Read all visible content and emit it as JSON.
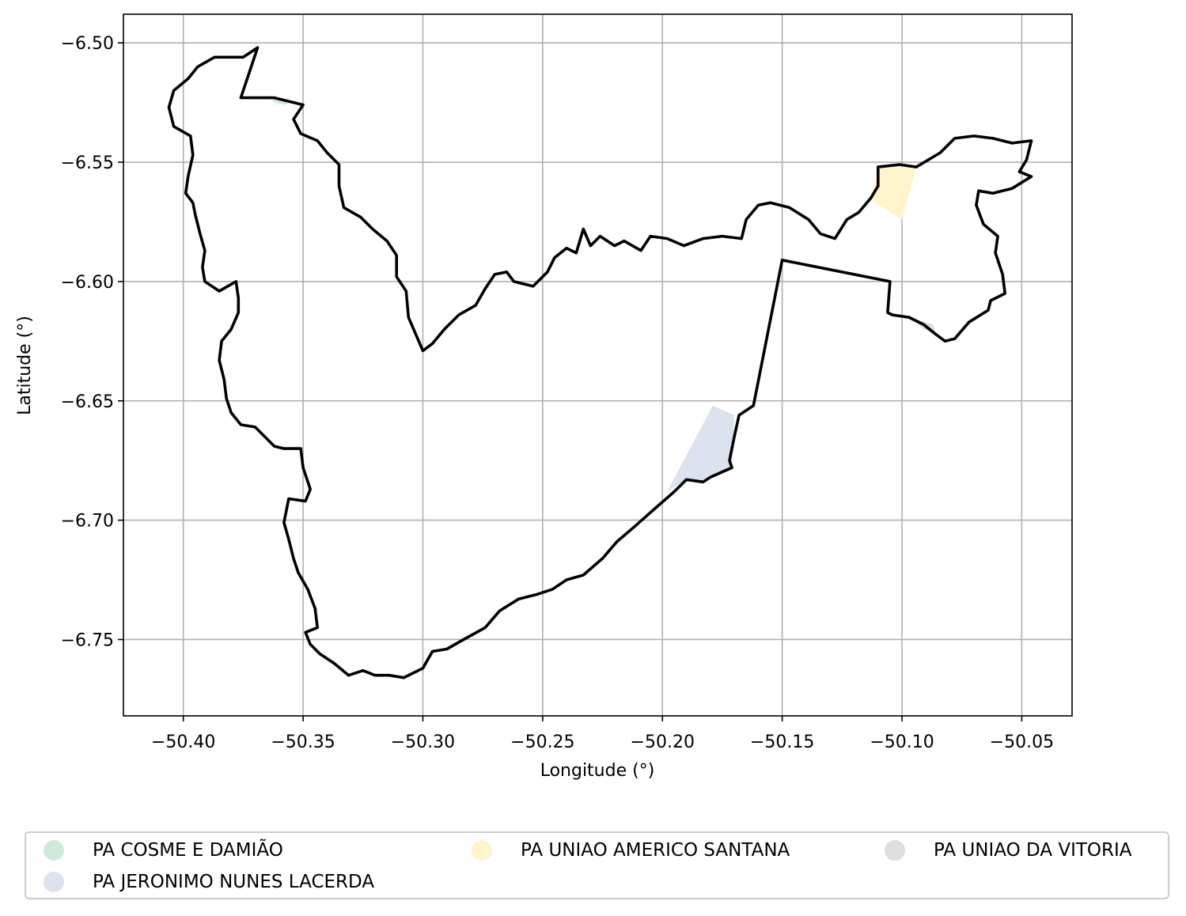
{
  "chart_data": {
    "type": "map",
    "title": "",
    "xlabel": "Longitude (°)",
    "ylabel": "Latitude (°)",
    "xlim": [
      -50.425,
      -50.029
    ],
    "ylim": [
      -6.782,
      -6.488
    ],
    "xticks": [
      -50.4,
      -50.35,
      -50.3,
      -50.25,
      -50.2,
      -50.15,
      -50.1,
      -50.05
    ],
    "xtick_labels": [
      "−50.40",
      "−50.35",
      "−50.30",
      "−50.25",
      "−50.20",
      "−50.15",
      "−50.10",
      "−50.05"
    ],
    "yticks": [
      -6.5,
      -6.55,
      -6.6,
      -6.65,
      -6.7,
      -6.75
    ],
    "ytick_labels": [
      "−6.50",
      "−6.55",
      "−6.60",
      "−6.65",
      "−6.70",
      "−6.75"
    ],
    "grid": true,
    "legend_position": "bottom",
    "boundary": {
      "color": "#000000",
      "coords": [
        [
          -50.369,
          -6.502
        ],
        [
          -50.376,
          -6.523
        ],
        [
          -50.362,
          -6.523
        ],
        [
          -50.35,
          -6.526
        ],
        [
          -50.354,
          -6.532
        ],
        [
          -50.351,
          -6.538
        ],
        [
          -50.344,
          -6.541
        ],
        [
          -50.34,
          -6.546
        ],
        [
          -50.335,
          -6.551
        ],
        [
          -50.335,
          -6.56
        ],
        [
          -50.333,
          -6.569
        ],
        [
          -50.326,
          -6.573
        ],
        [
          -50.321,
          -6.578
        ],
        [
          -50.315,
          -6.583
        ],
        [
          -50.311,
          -6.589
        ],
        [
          -50.311,
          -6.598
        ],
        [
          -50.307,
          -6.604
        ],
        [
          -50.306,
          -6.615
        ],
        [
          -50.303,
          -6.622
        ],
        [
          -50.3,
          -6.629
        ],
        [
          -50.296,
          -6.626
        ],
        [
          -50.291,
          -6.62
        ],
        [
          -50.285,
          -6.614
        ],
        [
          -50.278,
          -6.61
        ],
        [
          -50.274,
          -6.603
        ],
        [
          -50.27,
          -6.597
        ],
        [
          -50.265,
          -6.596
        ],
        [
          -50.262,
          -6.6
        ],
        [
          -50.254,
          -6.602
        ],
        [
          -50.248,
          -6.596
        ],
        [
          -50.245,
          -6.59
        ],
        [
          -50.24,
          -6.586
        ],
        [
          -50.236,
          -6.588
        ],
        [
          -50.233,
          -6.578
        ],
        [
          -50.23,
          -6.585
        ],
        [
          -50.226,
          -6.581
        ],
        [
          -50.22,
          -6.585
        ],
        [
          -50.216,
          -6.583
        ],
        [
          -50.209,
          -6.587
        ],
        [
          -50.205,
          -6.581
        ],
        [
          -50.198,
          -6.582
        ],
        [
          -50.191,
          -6.585
        ],
        [
          -50.183,
          -6.582
        ],
        [
          -50.175,
          -6.581
        ],
        [
          -50.167,
          -6.582
        ],
        [
          -50.165,
          -6.574
        ],
        [
          -50.16,
          -6.568
        ],
        [
          -50.155,
          -6.567
        ],
        [
          -50.147,
          -6.569
        ],
        [
          -50.139,
          -6.574
        ],
        [
          -50.134,
          -6.58
        ],
        [
          -50.128,
          -6.582
        ],
        [
          -50.123,
          -6.574
        ],
        [
          -50.118,
          -6.571
        ],
        [
          -50.113,
          -6.565
        ],
        [
          -50.11,
          -6.56
        ],
        [
          -50.11,
          -6.552
        ],
        [
          -50.101,
          -6.551
        ],
        [
          -50.094,
          -6.552
        ],
        [
          -50.084,
          -6.546
        ],
        [
          -50.078,
          -6.54
        ],
        [
          -50.07,
          -6.539
        ],
        [
          -50.062,
          -6.54
        ],
        [
          -50.054,
          -6.542
        ],
        [
          -50.046,
          -6.541
        ],
        [
          -50.048,
          -6.549
        ],
        [
          -50.051,
          -6.554
        ],
        [
          -50.046,
          -6.556
        ],
        [
          -50.054,
          -6.561
        ],
        [
          -50.062,
          -6.563
        ],
        [
          -50.068,
          -6.562
        ],
        [
          -50.069,
          -6.568
        ],
        [
          -50.066,
          -6.576
        ],
        [
          -50.06,
          -6.581
        ],
        [
          -50.061,
          -6.588
        ],
        [
          -50.058,
          -6.597
        ],
        [
          -50.057,
          -6.605
        ],
        [
          -50.063,
          -6.608
        ],
        [
          -50.064,
          -6.612
        ],
        [
          -50.072,
          -6.617
        ],
        [
          -50.078,
          -6.624
        ],
        [
          -50.082,
          -6.625
        ],
        [
          -50.086,
          -6.622
        ],
        [
          -50.091,
          -6.618
        ],
        [
          -50.097,
          -6.615
        ],
        [
          -50.104,
          -6.614
        ],
        [
          -50.106,
          -6.613
        ],
        [
          -50.105,
          -6.6
        ],
        [
          -50.15,
          -6.591
        ],
        [
          -50.162,
          -6.652
        ],
        [
          -50.168,
          -6.656
        ],
        [
          -50.17,
          -6.665
        ],
        [
          -50.172,
          -6.675
        ],
        [
          -50.171,
          -6.678
        ],
        [
          -50.18,
          -6.682
        ],
        [
          -50.183,
          -6.684
        ],
        [
          -50.19,
          -6.683
        ],
        [
          -50.195,
          -6.688
        ],
        [
          -50.203,
          -6.695
        ],
        [
          -50.212,
          -6.703
        ],
        [
          -50.219,
          -6.709
        ],
        [
          -50.225,
          -6.716
        ],
        [
          -50.233,
          -6.723
        ],
        [
          -50.24,
          -6.725
        ],
        [
          -50.246,
          -6.729
        ],
        [
          -50.252,
          -6.731
        ],
        [
          -50.26,
          -6.733
        ],
        [
          -50.268,
          -6.738
        ],
        [
          -50.274,
          -6.745
        ],
        [
          -50.283,
          -6.75
        ],
        [
          -50.29,
          -6.754
        ],
        [
          -50.296,
          -6.755
        ],
        [
          -50.3,
          -6.762
        ],
        [
          -50.308,
          -6.766
        ],
        [
          -50.314,
          -6.765
        ],
        [
          -50.32,
          -6.765
        ],
        [
          -50.325,
          -6.763
        ],
        [
          -50.331,
          -6.765
        ],
        [
          -50.337,
          -6.76
        ],
        [
          -50.343,
          -6.756
        ],
        [
          -50.347,
          -6.752
        ],
        [
          -50.349,
          -6.747
        ],
        [
          -50.344,
          -6.745
        ],
        [
          -50.345,
          -6.737
        ],
        [
          -50.348,
          -6.729
        ],
        [
          -50.352,
          -6.722
        ],
        [
          -50.354,
          -6.716
        ],
        [
          -50.356,
          -6.708
        ],
        [
          -50.358,
          -6.701
        ],
        [
          -50.356,
          -6.691
        ],
        [
          -50.349,
          -6.692
        ],
        [
          -50.347,
          -6.687
        ],
        [
          -50.35,
          -6.678
        ],
        [
          -50.351,
          -6.67
        ],
        [
          -50.358,
          -6.67
        ],
        [
          -50.362,
          -6.669
        ],
        [
          -50.366,
          -6.665
        ],
        [
          -50.37,
          -6.661
        ],
        [
          -50.376,
          -6.66
        ],
        [
          -50.38,
          -6.655
        ],
        [
          -50.382,
          -6.649
        ],
        [
          -50.383,
          -6.641
        ],
        [
          -50.385,
          -6.633
        ],
        [
          -50.384,
          -6.625
        ],
        [
          -50.38,
          -6.62
        ],
        [
          -50.377,
          -6.613
        ],
        [
          -50.377,
          -6.607
        ],
        [
          -50.378,
          -6.6
        ],
        [
          -50.385,
          -6.604
        ],
        [
          -50.391,
          -6.6
        ],
        [
          -50.392,
          -6.594
        ],
        [
          -50.391,
          -6.587
        ],
        [
          -50.393,
          -6.58
        ],
        [
          -50.395,
          -6.572
        ],
        [
          -50.396,
          -6.567
        ],
        [
          -50.399,
          -6.563
        ],
        [
          -50.398,
          -6.556
        ],
        [
          -50.396,
          -6.547
        ],
        [
          -50.397,
          -6.539
        ],
        [
          -50.404,
          -6.535
        ],
        [
          -50.406,
          -6.527
        ],
        [
          -50.404,
          -6.52
        ],
        [
          -50.398,
          -6.515
        ],
        [
          -50.394,
          -6.51
        ],
        [
          -50.387,
          -6.506
        ],
        [
          -50.381,
          -6.506
        ],
        [
          -50.375,
          -6.506
        ],
        [
          -50.369,
          -6.502
        ]
      ]
    },
    "areas": [
      {
        "name": "PA COSME E DAMIÃO",
        "color": "#cfeadb",
        "coords": [
          [
            -50.364,
            -6.523
          ],
          [
            -50.355,
            -6.525
          ],
          [
            -50.358,
            -6.526
          ],
          [
            -50.362,
            -6.525
          ]
        ]
      },
      {
        "name": "PA JERONIMO NUNES LACERDA",
        "color": "#dde2ef",
        "coords": [
          [
            -50.179,
            -6.652
          ],
          [
            -50.17,
            -6.656
          ],
          [
            -50.171,
            -6.678
          ],
          [
            -50.183,
            -6.684
          ],
          [
            -50.19,
            -6.683
          ],
          [
            -50.198,
            -6.688
          ]
        ]
      },
      {
        "name": "PA UNIAO AMERICO SANTANA",
        "color": "#fff4cc",
        "coords": [
          [
            -50.11,
            -6.552
          ],
          [
            -50.094,
            -6.552
          ],
          [
            -50.1,
            -6.574
          ],
          [
            -50.113,
            -6.566
          ]
        ]
      },
      {
        "name": "PA UNIAO DA VITORIA",
        "color": "#dedede",
        "coords": [
          [
            -50.097,
            -6.615
          ],
          [
            -50.087,
            -6.618
          ],
          [
            -50.086,
            -6.622
          ],
          [
            -50.091,
            -6.62
          ]
        ]
      }
    ]
  },
  "legend": {
    "items": [
      {
        "label": "PA COSME E DAMIÃO",
        "color": "#cfeadb"
      },
      {
        "label": "PA JERONIMO NUNES LACERDA",
        "color": "#dde2ef"
      },
      {
        "label": "PA UNIAO AMERICO SANTANA",
        "color": "#fff4cc"
      },
      {
        "label": "PA UNIAO DA VITORIA",
        "color": "#dedede"
      }
    ]
  }
}
